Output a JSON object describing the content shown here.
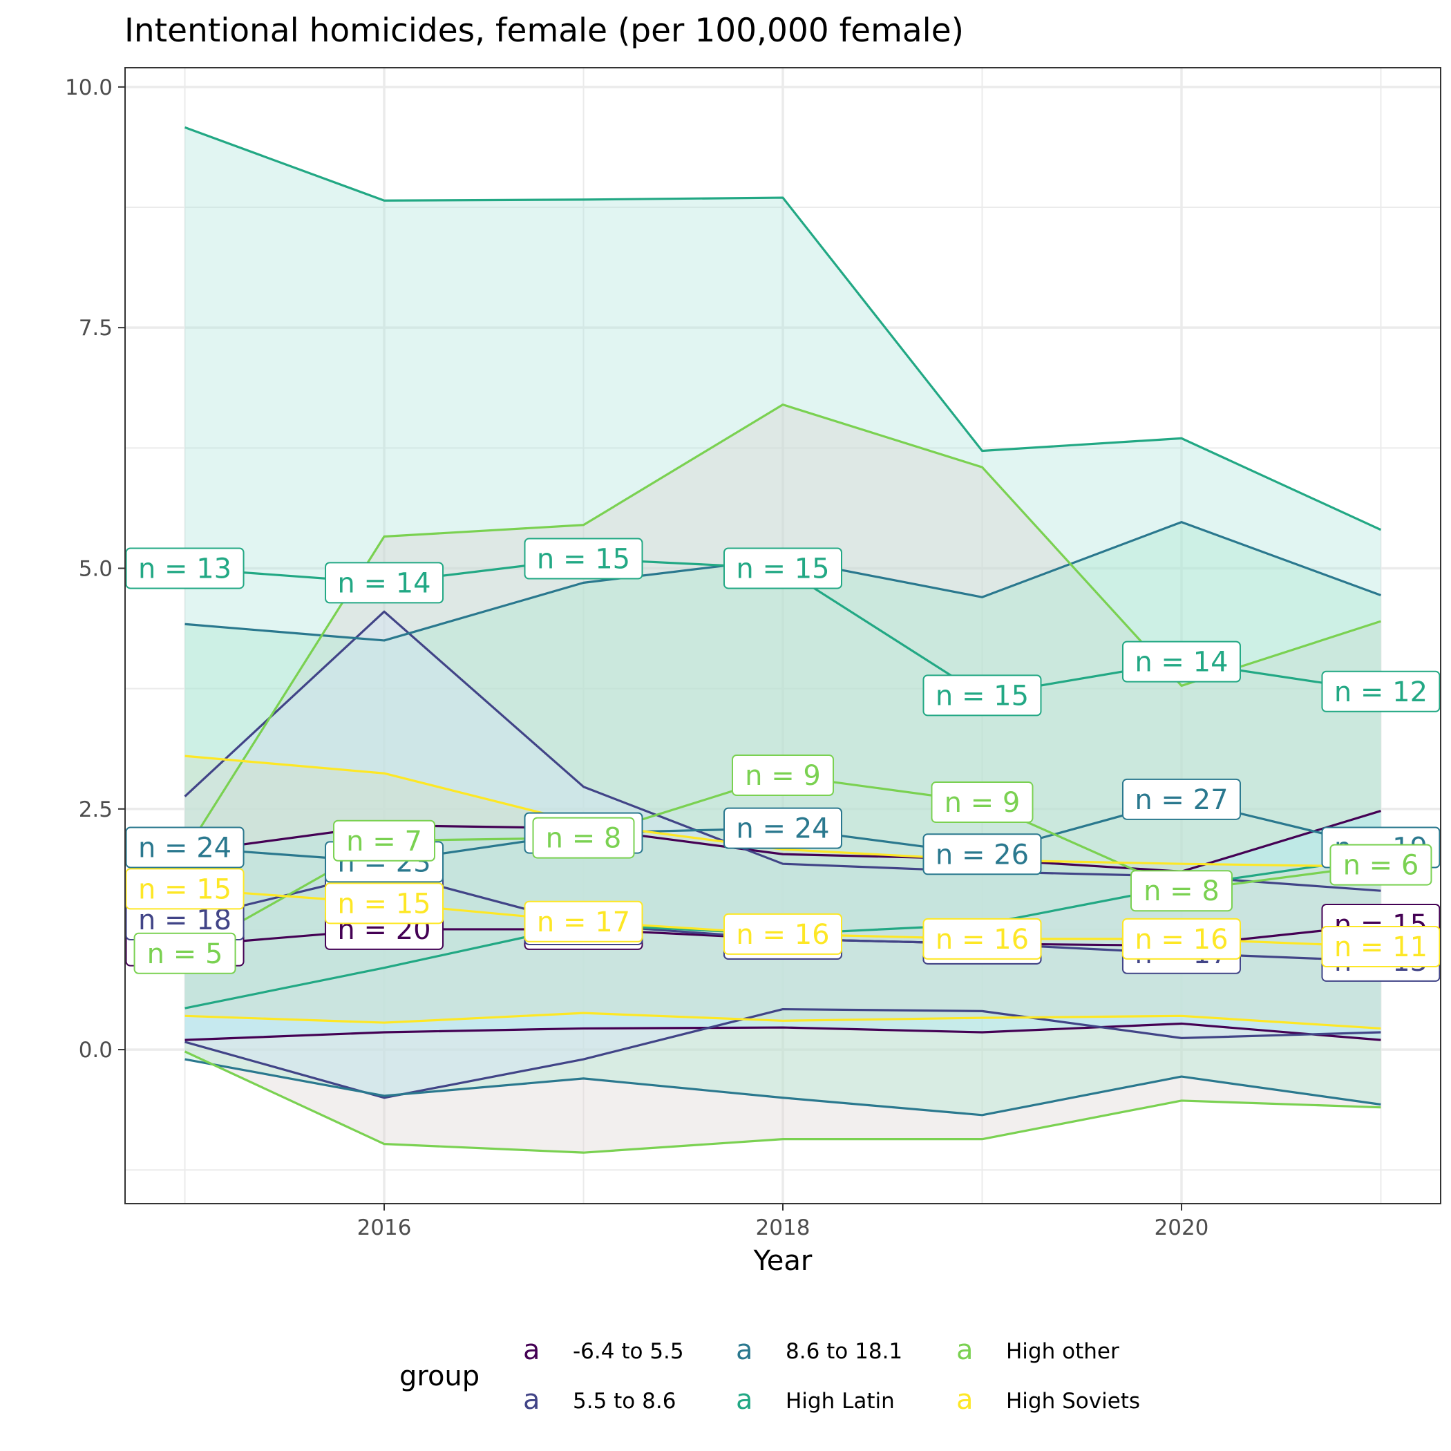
{
  "chart_data": {
    "type": "line",
    "title": "Intentional homicides, female (per 100,000 female)",
    "xlabel": "Year",
    "ylabel": "",
    "xlim": [
      2014.7,
      2021.3
    ],
    "ylim": [
      -1.6,
      10.2
    ],
    "x_ticks": [
      2016,
      2018,
      2020
    ],
    "x_tick_labels": [
      "2016",
      "2018",
      "2020"
    ],
    "y_ticks": [
      0,
      2.5,
      5,
      7.5,
      10
    ],
    "y_tick_labels": [
      "0.0",
      "2.5",
      "5.0",
      "7.5",
      "10.0"
    ],
    "grid": true,
    "legend_position": "bottom",
    "legend_title": "group",
    "legend_key_glyph": "a",
    "x": [
      2015,
      2016,
      2017,
      2018,
      2019,
      2020,
      2021
    ],
    "series": [
      {
        "name": "-6.4 to 5.5",
        "color": "#440154",
        "mean": [
          1.08,
          1.25,
          1.25,
          1.15,
          1.1,
          1.08,
          1.3
        ],
        "lower": [
          0.1,
          0.18,
          0.22,
          0.23,
          0.18,
          0.27,
          0.1
        ],
        "upper": [
          2.05,
          2.33,
          2.3,
          2.03,
          1.98,
          1.85,
          2.48
        ],
        "n": [
          16,
          20,
          16,
          19,
          17,
          17,
          15
        ]
      },
      {
        "name": "5.5 to 8.6",
        "color": "#414487",
        "mean": [
          1.35,
          1.85,
          1.3,
          1.15,
          1.1,
          1.0,
          0.92
        ],
        "lower": [
          0.08,
          -0.5,
          -0.1,
          0.42,
          0.4,
          0.12,
          0.18
        ],
        "upper": [
          2.63,
          4.55,
          2.73,
          1.93,
          1.85,
          1.8,
          1.65
        ],
        "n": [
          18,
          23,
          17,
          20,
          16,
          17,
          13
        ]
      },
      {
        "name": "8.6 to 18.1",
        "color": "#2A788E",
        "mean": [
          2.1,
          1.95,
          2.25,
          2.3,
          2.03,
          2.6,
          2.1
        ],
        "lower": [
          -0.1,
          -0.48,
          -0.3,
          -0.5,
          -0.68,
          -0.28,
          -0.57
        ],
        "upper": [
          4.42,
          4.25,
          4.85,
          5.1,
          4.7,
          5.48,
          4.72
        ],
        "n": [
          24,
          23,
          18,
          24,
          26,
          27,
          19
        ]
      },
      {
        "name": "High Latin",
        "color": "#22A884",
        "mean": [
          5.0,
          4.85,
          5.1,
          5.0,
          3.68,
          4.03,
          3.72
        ],
        "lower": [
          0.43,
          0.85,
          1.3,
          1.2,
          1.3,
          1.7,
          2.0
        ],
        "upper": [
          9.58,
          8.82,
          8.83,
          8.85,
          6.22,
          6.35,
          5.4
        ],
        "n": [
          13,
          14,
          15,
          15,
          15,
          14,
          12
        ]
      },
      {
        "name": "High other",
        "color": "#7AD151",
        "mean": [
          1.0,
          2.17,
          2.2,
          2.85,
          2.57,
          1.65,
          1.92
        ],
        "lower": [
          -0.02,
          -0.98,
          -1.07,
          -0.93,
          -0.93,
          -0.53,
          -0.6
        ],
        "upper": [
          2.05,
          5.33,
          5.45,
          6.7,
          6.05,
          3.78,
          4.45
        ],
        "n": [
          5,
          7,
          8,
          9,
          9,
          8,
          6
        ]
      },
      {
        "name": "High Soviets",
        "color": "#FDE725",
        "mean": [
          1.67,
          1.52,
          1.33,
          1.2,
          1.15,
          1.15,
          1.07
        ],
        "lower": [
          0.35,
          0.28,
          0.38,
          0.3,
          0.33,
          0.35,
          0.22
        ],
        "upper": [
          3.05,
          2.87,
          2.35,
          2.08,
          1.97,
          1.93,
          1.9
        ],
        "n": [
          15,
          15,
          17,
          16,
          16,
          16,
          11
        ]
      }
    ],
    "ribbon_fills": [
      "#a8ebf5",
      "#d5e3fa",
      "#a9e8cd",
      "#a9e3d9",
      "#d9d2ce",
      "#d0dcc2"
    ]
  }
}
